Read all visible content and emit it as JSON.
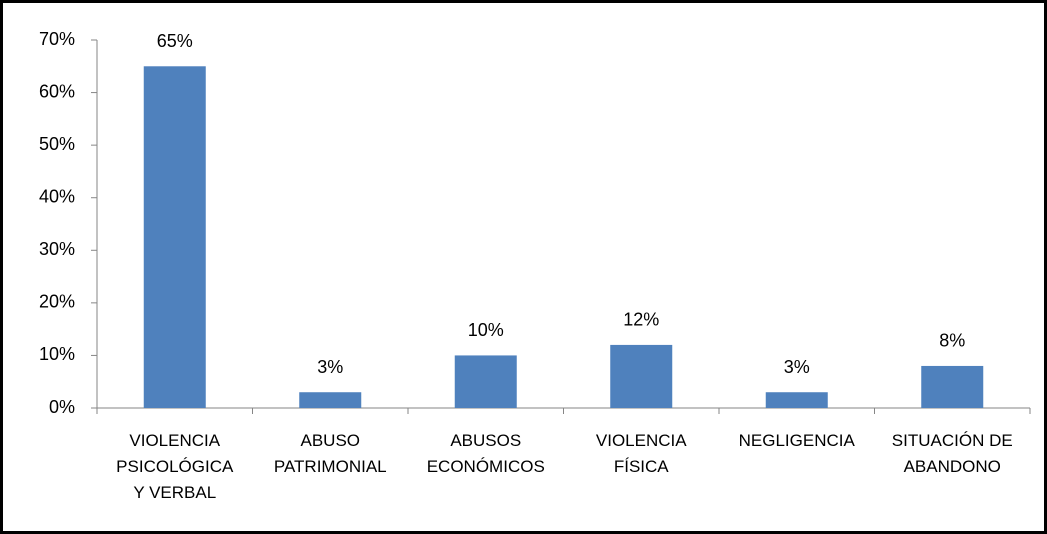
{
  "chart_data": {
    "type": "bar",
    "categories": [
      "VIOLENCIA PSICOLÓGICA Y VERBAL",
      "ABUSO PATRIMONIAL",
      "ABUSOS ECONÓMICOS",
      "VIOLENCIA FÍSICA",
      "NEGLIGENCIA",
      "SITUACIÓN DE ABANDONO"
    ],
    "values": [
      65,
      3,
      10,
      12,
      3,
      8
    ],
    "value_labels": [
      "65%",
      "3%",
      "10%",
      "12%",
      "3%",
      "8%"
    ],
    "color": "#4f81bd",
    "ylim": [
      0,
      70
    ],
    "yticks": [
      {
        "value": 0,
        "label": "0%"
      },
      {
        "value": 10,
        "label": "10%"
      },
      {
        "value": 20,
        "label": "20%"
      },
      {
        "value": 30,
        "label": "30%"
      },
      {
        "value": 40,
        "label": "40%"
      },
      {
        "value": 50,
        "label": "50%"
      },
      {
        "value": 60,
        "label": "60%"
      },
      {
        "value": 70,
        "label": "70%"
      }
    ],
    "grid": false
  }
}
